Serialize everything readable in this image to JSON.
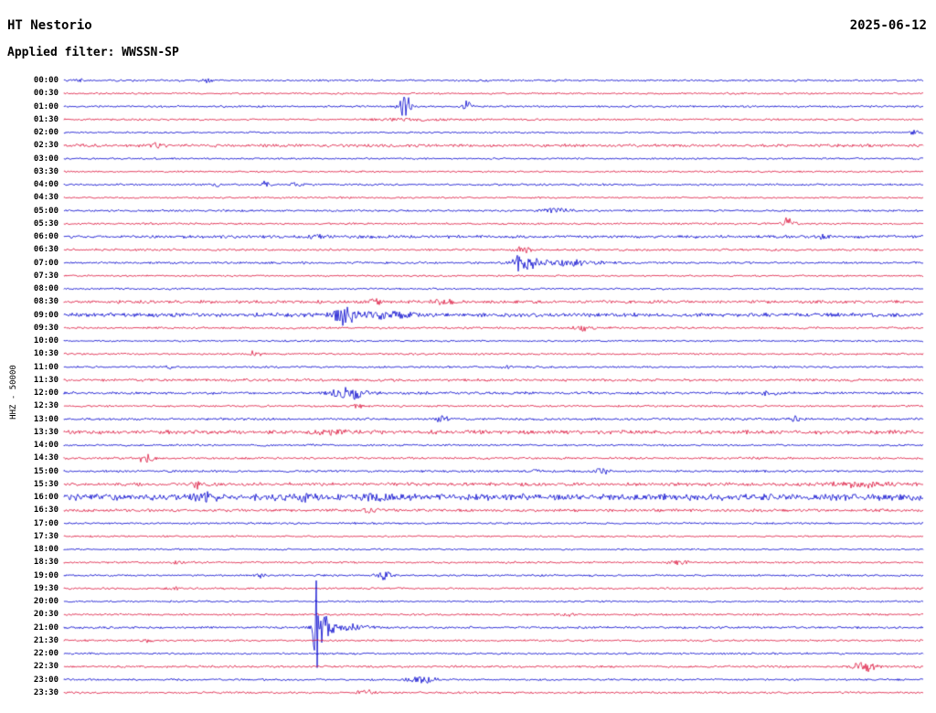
{
  "chart_data": {
    "type": "line",
    "variant": "helicorder-seismogram",
    "title": "HT Nestorio",
    "date": "2025-06-12",
    "filter": "Applied filter: WWSSN-SP",
    "ylabel": "HHZ - 50000",
    "row_minutes": 30,
    "legend_position": "none",
    "grid": false,
    "colors": {
      "blue": "#0000cd",
      "red": "#dc143c"
    },
    "traces": [
      {
        "label": "00:00",
        "color": "blue",
        "noise": 0.9,
        "events": [
          {
            "t": 0.02,
            "a": 1.5,
            "w": 0.003
          },
          {
            "t": 0.168,
            "a": 2.5,
            "w": 0.003
          }
        ]
      },
      {
        "label": "00:30",
        "color": "red",
        "noise": 0.8,
        "events": []
      },
      {
        "label": "01:00",
        "color": "blue",
        "noise": 0.9,
        "events": [
          {
            "t": 0.397,
            "a": 14,
            "w": 0.005
          },
          {
            "t": 0.47,
            "a": 6,
            "w": 0.004
          }
        ]
      },
      {
        "label": "01:30",
        "color": "red",
        "noise": 0.9,
        "events": [
          {
            "t": 0.4,
            "a": 1.2,
            "w": 0.03
          }
        ]
      },
      {
        "label": "02:00",
        "color": "blue",
        "noise": 0.8,
        "events": [
          {
            "t": 0.99,
            "a": 4,
            "w": 0.004
          }
        ]
      },
      {
        "label": "02:30",
        "color": "red",
        "noise": 1.4,
        "events": [
          {
            "t": 0.106,
            "a": 2.5,
            "w": 0.008
          }
        ]
      },
      {
        "label": "03:00",
        "color": "blue",
        "noise": 0.8,
        "events": []
      },
      {
        "label": "03:30",
        "color": "red",
        "noise": 0.8,
        "events": []
      },
      {
        "label": "04:00",
        "color": "blue",
        "noise": 0.9,
        "events": [
          {
            "t": 0.178,
            "a": 2,
            "w": 0.004
          },
          {
            "t": 0.234,
            "a": 6,
            "w": 0.003
          },
          {
            "t": 0.27,
            "a": 2,
            "w": 0.006
          }
        ]
      },
      {
        "label": "04:30",
        "color": "red",
        "noise": 0.8,
        "events": []
      },
      {
        "label": "05:00",
        "color": "blue",
        "noise": 0.9,
        "events": [
          {
            "t": 0.574,
            "a": 3,
            "w": 0.012
          }
        ]
      },
      {
        "label": "05:30",
        "color": "red",
        "noise": 0.9,
        "events": [
          {
            "t": 0.843,
            "a": 7,
            "w": 0.005
          }
        ]
      },
      {
        "label": "06:00",
        "color": "blue",
        "noise": 1.3,
        "events": [
          {
            "t": 0.293,
            "a": 2,
            "w": 0.01
          },
          {
            "t": 0.883,
            "a": 2.5,
            "w": 0.008
          }
        ]
      },
      {
        "label": "06:30",
        "color": "red",
        "noise": 1.0,
        "events": [
          {
            "t": 0.535,
            "a": 4,
            "w": 0.006
          }
        ]
      },
      {
        "label": "07:00",
        "color": "blue",
        "noise": 1.0,
        "events": [
          {
            "t": 0.537,
            "a": 11,
            "w": 0.011
          },
          {
            "t": 0.59,
            "a": 3.5,
            "w": 0.025
          }
        ]
      },
      {
        "label": "07:30",
        "color": "red",
        "noise": 0.8,
        "events": []
      },
      {
        "label": "08:00",
        "color": "blue",
        "noise": 0.8,
        "events": []
      },
      {
        "label": "08:30",
        "color": "red",
        "noise": 1.4,
        "events": [
          {
            "t": 0.362,
            "a": 4.5,
            "w": 0.005
          },
          {
            "t": 0.44,
            "a": 3,
            "w": 0.008
          }
        ]
      },
      {
        "label": "09:00",
        "color": "blue",
        "noise": 1.8,
        "events": [
          {
            "t": 0.324,
            "a": 12,
            "w": 0.009
          },
          {
            "t": 0.37,
            "a": 4,
            "w": 0.03
          }
        ]
      },
      {
        "label": "09:30",
        "color": "red",
        "noise": 1.0,
        "events": [
          {
            "t": 0.606,
            "a": 4,
            "w": 0.007
          }
        ]
      },
      {
        "label": "10:00",
        "color": "blue",
        "noise": 0.8,
        "events": []
      },
      {
        "label": "10:30",
        "color": "red",
        "noise": 0.9,
        "events": [
          {
            "t": 0.223,
            "a": 5.5,
            "w": 0.004
          }
        ]
      },
      {
        "label": "11:00",
        "color": "blue",
        "noise": 0.9,
        "events": [
          {
            "t": 0.122,
            "a": 2.5,
            "w": 0.003
          },
          {
            "t": 0.516,
            "a": 2.5,
            "w": 0.004
          }
        ]
      },
      {
        "label": "11:30",
        "color": "red",
        "noise": 1.2,
        "events": []
      },
      {
        "label": "12:00",
        "color": "blue",
        "noise": 1.2,
        "events": [
          {
            "t": 0.33,
            "a": 9,
            "w": 0.013
          },
          {
            "t": 0.82,
            "a": 1.8,
            "w": 0.01
          }
        ]
      },
      {
        "label": "12:30",
        "color": "red",
        "noise": 0.9,
        "events": [
          {
            "t": 0.34,
            "a": 3.5,
            "w": 0.005
          }
        ]
      },
      {
        "label": "13:00",
        "color": "blue",
        "noise": 1.1,
        "events": [
          {
            "t": 0.44,
            "a": 6.5,
            "w": 0.004
          },
          {
            "t": 0.85,
            "a": 4,
            "w": 0.004
          }
        ]
      },
      {
        "label": "13:30",
        "color": "red",
        "noise": 1.8,
        "events": [
          {
            "t": 0.32,
            "a": 2,
            "w": 0.02
          }
        ]
      },
      {
        "label": "14:00",
        "color": "blue",
        "noise": 0.9,
        "events": []
      },
      {
        "label": "14:30",
        "color": "red",
        "noise": 1.0,
        "events": [
          {
            "t": 0.096,
            "a": 6,
            "w": 0.006
          }
        ]
      },
      {
        "label": "15:00",
        "color": "blue",
        "noise": 1.0,
        "events": [
          {
            "t": 0.55,
            "a": 2.5,
            "w": 0.006
          },
          {
            "t": 0.625,
            "a": 3.5,
            "w": 0.006
          }
        ]
      },
      {
        "label": "15:30",
        "color": "red",
        "noise": 1.5,
        "events": [
          {
            "t": 0.154,
            "a": 5,
            "w": 0.005
          },
          {
            "t": 0.93,
            "a": 3,
            "w": 0.03
          }
        ]
      },
      {
        "label": "16:00",
        "color": "blue",
        "noise": 3.0,
        "events": [
          {
            "t": 0.16,
            "a": 4,
            "w": 0.01
          },
          {
            "t": 0.28,
            "a": 3,
            "w": 0.012
          },
          {
            "t": 0.36,
            "a": 3,
            "w": 0.015
          }
        ]
      },
      {
        "label": "16:30",
        "color": "red",
        "noise": 1.3,
        "events": [
          {
            "t": 0.356,
            "a": 4,
            "w": 0.006
          }
        ]
      },
      {
        "label": "17:00",
        "color": "blue",
        "noise": 0.9,
        "events": []
      },
      {
        "label": "17:30",
        "color": "red",
        "noise": 0.8,
        "events": []
      },
      {
        "label": "18:00",
        "color": "blue",
        "noise": 0.8,
        "events": []
      },
      {
        "label": "18:30",
        "color": "red",
        "noise": 0.9,
        "events": [
          {
            "t": 0.13,
            "a": 2,
            "w": 0.005
          },
          {
            "t": 0.715,
            "a": 3,
            "w": 0.008
          }
        ]
      },
      {
        "label": "19:00",
        "color": "blue",
        "noise": 0.9,
        "events": [
          {
            "t": 0.227,
            "a": 3.5,
            "w": 0.004
          },
          {
            "t": 0.374,
            "a": 4.5,
            "w": 0.006
          }
        ]
      },
      {
        "label": "19:30",
        "color": "red",
        "noise": 0.9,
        "events": [
          {
            "t": 0.128,
            "a": 2.5,
            "w": 0.005
          }
        ]
      },
      {
        "label": "20:00",
        "color": "blue",
        "noise": 0.8,
        "events": []
      },
      {
        "label": "20:30",
        "color": "red",
        "noise": 0.9,
        "events": [
          {
            "t": 0.585,
            "a": 3,
            "w": 0.006
          }
        ]
      },
      {
        "label": "21:00",
        "color": "blue",
        "noise": 1.0,
        "events": [
          {
            "t": 0.293,
            "a": 85,
            "w": 0.0015
          },
          {
            "t": 0.3,
            "a": 16,
            "w": 0.007
          },
          {
            "t": 0.325,
            "a": 5,
            "w": 0.02
          }
        ]
      },
      {
        "label": "21:30",
        "color": "red",
        "noise": 0.9,
        "events": [
          {
            "t": 0.1,
            "a": 2,
            "w": 0.004
          }
        ]
      },
      {
        "label": "22:00",
        "color": "blue",
        "noise": 0.9,
        "events": []
      },
      {
        "label": "22:30",
        "color": "red",
        "noise": 1.0,
        "events": [
          {
            "t": 0.931,
            "a": 7.5,
            "w": 0.009
          }
        ]
      },
      {
        "label": "23:00",
        "color": "blue",
        "noise": 0.9,
        "events": [
          {
            "t": 0.415,
            "a": 4.5,
            "w": 0.011
          }
        ]
      },
      {
        "label": "23:30",
        "color": "red",
        "noise": 0.9,
        "events": [
          {
            "t": 0.351,
            "a": 4,
            "w": 0.007
          }
        ]
      }
    ]
  }
}
